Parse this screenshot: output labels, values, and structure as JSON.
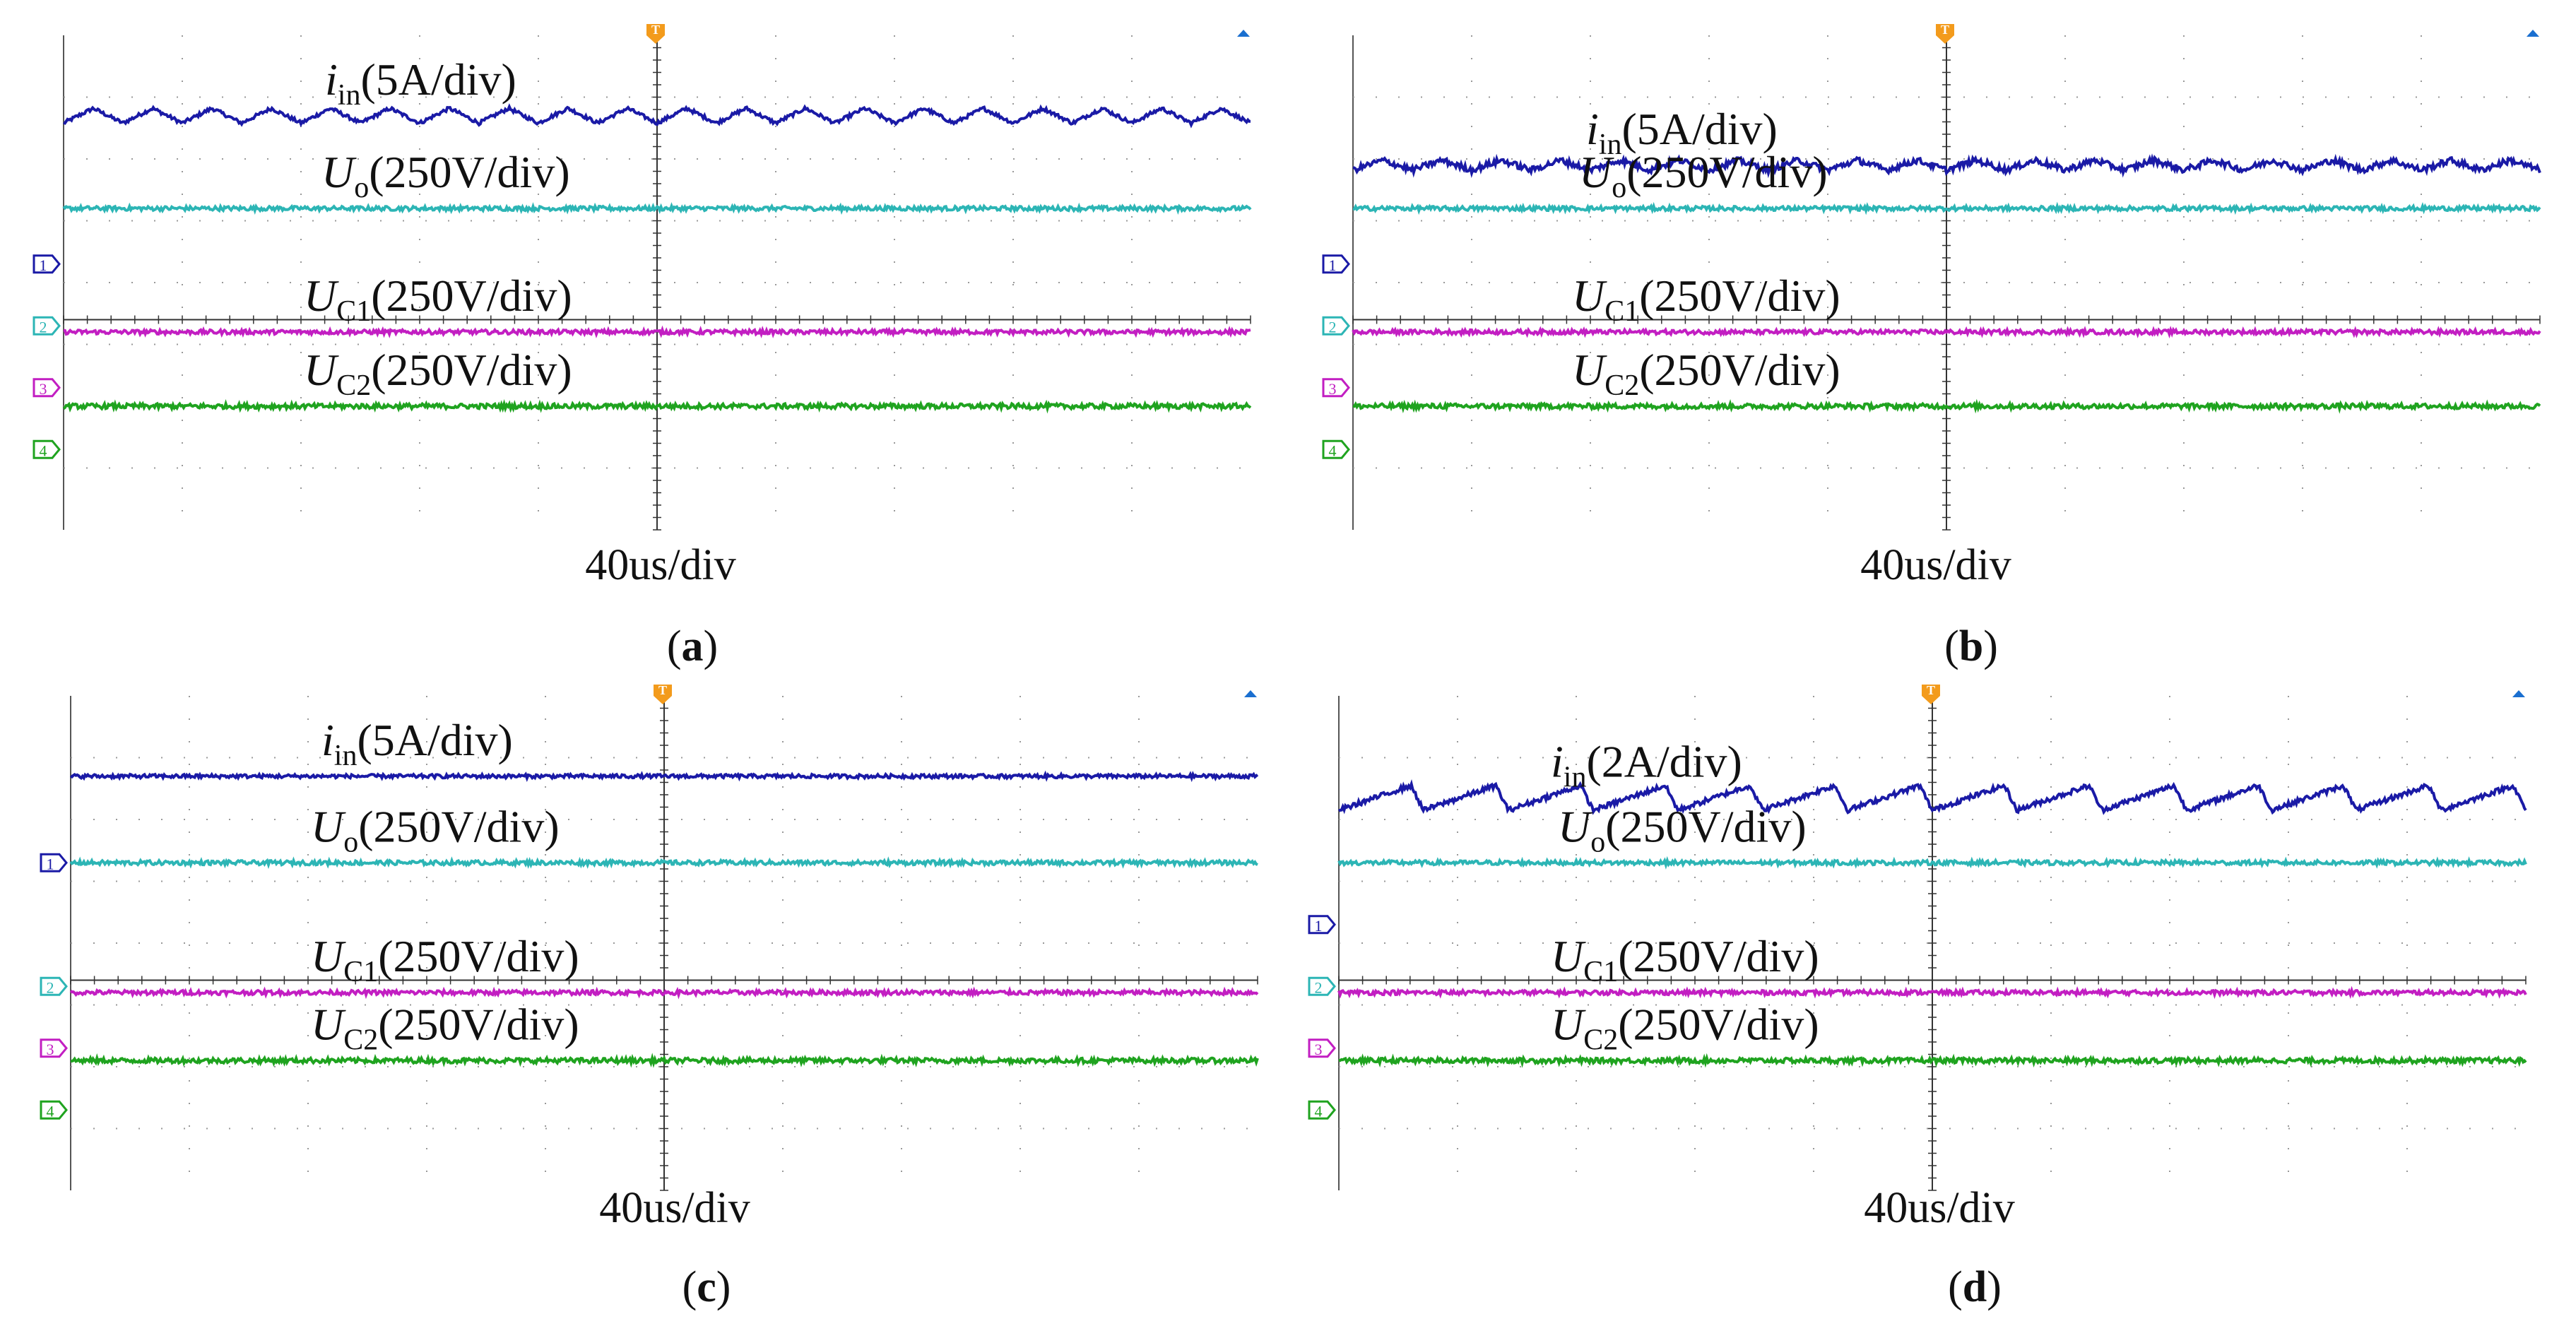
{
  "figure_description_labels": {
    "panel_labels": [
      "(a)",
      "(b)",
      "(c)",
      "(d)"
    ]
  },
  "chart_data": [
    {
      "type": "line",
      "panel": "a",
      "caption": "a",
      "xlabel": "40us/div",
      "grid": true,
      "divisions": {
        "x": 10,
        "y": 8
      },
      "series": [
        {
          "name": "iin",
          "channel": "1",
          "label_main": "i",
          "label_sub": "in",
          "label_scale": "(5A/div)",
          "level_div": 6.7,
          "ripple_div": 0.12,
          "cycles": 20,
          "shape": "triangle",
          "noise_div": 0.03,
          "color": "#1a1aa6"
        },
        {
          "name": "Uo",
          "channel": "2",
          "label_main": "U",
          "label_sub": "o",
          "label_scale": "(250V/div)",
          "level_div": 5.2,
          "ripple_div": 0,
          "cycles": 0,
          "shape": "flat",
          "noise_div": 0.035,
          "color": "#2cb5b5"
        },
        {
          "name": "UC1",
          "channel": "3",
          "label_main": "U",
          "label_sub": "C1",
          "label_scale": "(250V/div)",
          "level_div": 3.2,
          "ripple_div": 0,
          "cycles": 0,
          "shape": "flat",
          "noise_div": 0.035,
          "color": "#c21ec2"
        },
        {
          "name": "UC2",
          "channel": "4",
          "label_main": "U",
          "label_sub": "C2",
          "label_scale": "(250V/div)",
          "level_div": 2.0,
          "ripple_div": 0,
          "cycles": 0,
          "shape": "flat",
          "noise_div": 0.04,
          "color": "#1fa31f"
        }
      ],
      "channel_markers": [
        {
          "channel": "1",
          "color": "#1a1aa6",
          "level_div": 4.3
        },
        {
          "channel": "2",
          "color": "#2cb5b5",
          "level_div": 3.3
        },
        {
          "channel": "3",
          "color": "#c21ec2",
          "level_div": 2.3
        },
        {
          "channel": "4",
          "color": "#1fa31f",
          "level_div": 1.3
        }
      ],
      "trigger_label": "T"
    },
    {
      "type": "line",
      "panel": "b",
      "caption": "b",
      "xlabel": "40us/div",
      "grid": true,
      "divisions": {
        "x": 10,
        "y": 8
      },
      "series": [
        {
          "name": "iin",
          "channel": "1",
          "label_main": "i",
          "label_sub": "in",
          "label_scale": "(5A/div)",
          "level_div": 5.9,
          "ripple_div": 0.08,
          "cycles": 20,
          "shape": "triangle",
          "noise_div": 0.05,
          "color": "#1a1aa6"
        },
        {
          "name": "Uo",
          "channel": "2",
          "label_main": "U",
          "label_sub": "o",
          "label_scale": "(250V/div)",
          "level_div": 5.2,
          "ripple_div": 0,
          "cycles": 0,
          "shape": "flat",
          "noise_div": 0.035,
          "color": "#2cb5b5"
        },
        {
          "name": "UC1",
          "channel": "3",
          "label_main": "U",
          "label_sub": "C1",
          "label_scale": "(250V/div)",
          "level_div": 3.2,
          "ripple_div": 0,
          "cycles": 0,
          "shape": "flat",
          "noise_div": 0.035,
          "color": "#c21ec2"
        },
        {
          "name": "UC2",
          "channel": "4",
          "label_main": "U",
          "label_sub": "C2",
          "label_scale": "(250V/div)",
          "level_div": 2.0,
          "ripple_div": 0,
          "cycles": 0,
          "shape": "flat",
          "noise_div": 0.04,
          "color": "#1fa31f"
        }
      ],
      "channel_markers": [
        {
          "channel": "1",
          "color": "#1a1aa6",
          "level_div": 4.3
        },
        {
          "channel": "2",
          "color": "#2cb5b5",
          "level_div": 3.3
        },
        {
          "channel": "3",
          "color": "#c21ec2",
          "level_div": 2.3
        },
        {
          "channel": "4",
          "color": "#1fa31f",
          "level_div": 1.3
        }
      ],
      "trigger_label": "T"
    },
    {
      "type": "line",
      "panel": "c",
      "caption": "c",
      "xlabel": "40us/div",
      "grid": true,
      "divisions": {
        "x": 10,
        "y": 8
      },
      "series": [
        {
          "name": "iin",
          "channel": "1",
          "label_main": "i",
          "label_sub": "in",
          "label_scale": "(5A/div)",
          "level_div": 6.7,
          "ripple_div": 0,
          "cycles": 0,
          "shape": "flat",
          "noise_div": 0.03,
          "color": "#1a1aa6"
        },
        {
          "name": "Uo",
          "channel": "2",
          "label_main": "U",
          "label_sub": "o",
          "label_scale": "(250V/div)",
          "level_div": 5.3,
          "ripple_div": 0,
          "cycles": 0,
          "shape": "flat",
          "noise_div": 0.035,
          "color": "#2cb5b5"
        },
        {
          "name": "UC1",
          "channel": "3",
          "label_main": "U",
          "label_sub": "C1",
          "label_scale": "(250V/div)",
          "level_div": 3.2,
          "ripple_div": 0,
          "cycles": 0,
          "shape": "flat",
          "noise_div": 0.035,
          "color": "#c21ec2"
        },
        {
          "name": "UC2",
          "channel": "4",
          "label_main": "U",
          "label_sub": "C2",
          "label_scale": "(250V/div)",
          "level_div": 2.1,
          "ripple_div": 0,
          "cycles": 0,
          "shape": "flat",
          "noise_div": 0.04,
          "color": "#1fa31f"
        }
      ],
      "channel_markers": [
        {
          "channel": "1",
          "color": "#1a1aa6",
          "level_div": 5.3
        },
        {
          "channel": "2",
          "color": "#2cb5b5",
          "level_div": 3.3
        },
        {
          "channel": "3",
          "color": "#c21ec2",
          "level_div": 2.3
        },
        {
          "channel": "4",
          "color": "#1fa31f",
          "level_div": 1.3
        }
      ],
      "trigger_label": "T"
    },
    {
      "type": "line",
      "panel": "d",
      "caption": "d",
      "xlabel": "40us/div",
      "grid": true,
      "divisions": {
        "x": 10,
        "y": 8
      },
      "series": [
        {
          "name": "iin",
          "channel": "1",
          "label_main": "i",
          "label_sub": "in",
          "label_scale": "(2A/div)",
          "level_div": 6.35,
          "ripple_div": 0.2,
          "cycles": 14,
          "shape": "sawtooth",
          "noise_div": 0.04,
          "color": "#1a1aa6"
        },
        {
          "name": "Uo",
          "channel": "2",
          "label_main": "U",
          "label_sub": "o",
          "label_scale": "(250V/div)",
          "level_div": 5.3,
          "ripple_div": 0,
          "cycles": 0,
          "shape": "flat",
          "noise_div": 0.035,
          "color": "#2cb5b5"
        },
        {
          "name": "UC1",
          "channel": "3",
          "label_main": "U",
          "label_sub": "C1",
          "label_scale": "(250V/div)",
          "level_div": 3.2,
          "ripple_div": 0,
          "cycles": 0,
          "shape": "flat",
          "noise_div": 0.035,
          "color": "#c21ec2"
        },
        {
          "name": "UC2",
          "channel": "4",
          "label_main": "U",
          "label_sub": "C2",
          "label_scale": "(250V/div)",
          "level_div": 2.1,
          "ripple_div": 0,
          "cycles": 0,
          "shape": "flat",
          "noise_div": 0.04,
          "color": "#1fa31f"
        }
      ],
      "channel_markers": [
        {
          "channel": "1",
          "color": "#1a1aa6",
          "level_div": 4.3
        },
        {
          "channel": "2",
          "color": "#2cb5b5",
          "level_div": 3.3
        },
        {
          "channel": "3",
          "color": "#c21ec2",
          "level_div": 2.3
        },
        {
          "channel": "4",
          "color": "#1fa31f",
          "level_div": 1.3
        }
      ],
      "trigger_label": "T"
    }
  ]
}
